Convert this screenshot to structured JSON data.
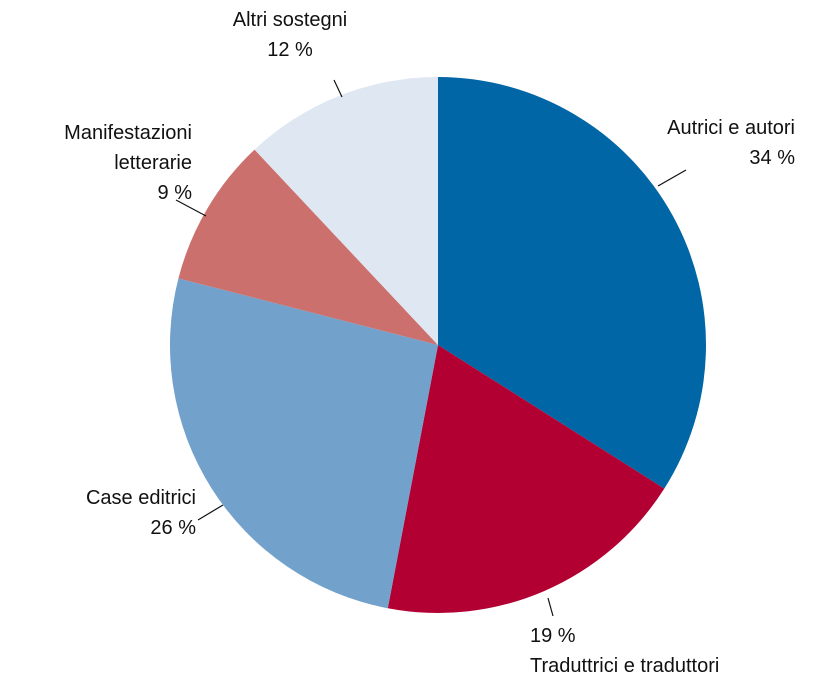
{
  "chart_data": {
    "type": "pie",
    "categories": [
      "Autrici e autori",
      "Traduttrici e traduttori",
      "Case editrici",
      "Manifestazioni letterarie",
      "Altri sostegni"
    ],
    "values": [
      34,
      19,
      26,
      9,
      12
    ],
    "value_labels": [
      "34 %",
      "19 %",
      "26 %",
      "9 %",
      "12 %"
    ],
    "colors": [
      "#0066a6",
      "#b20033",
      "#72a1cb",
      "#cc706e",
      "#dfe7f2"
    ]
  }
}
